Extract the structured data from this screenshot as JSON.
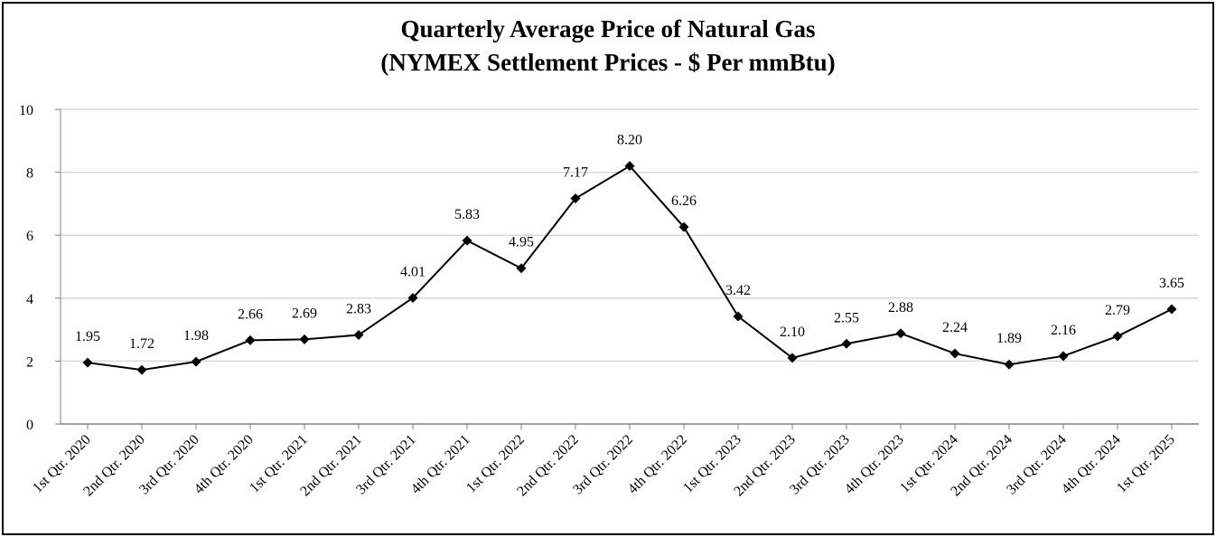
{
  "chart_data": {
    "type": "line",
    "title": "Quarterly Average Price of Natural Gas",
    "subtitle": "(NYMEX Settlement Prices - $ Per mmBtu)",
    "categories": [
      "1st Qtr. 2020",
      "2nd Qtr. 2020",
      "3rd Qtr. 2020",
      "4th Qtr. 2020",
      "1st Qtr. 2021",
      "2nd Qtr. 2021",
      "3rd Qtr. 2021",
      "4th Qtr. 2021",
      "1st Qtr. 2022",
      "2nd Qtr. 2022",
      "3rd Qtr. 2022",
      "4th Qtr. 2022",
      "1st Qtr. 2023",
      "2nd Qtr. 2023",
      "3rd Qtr. 2023",
      "4th Qtr. 2023",
      "1st Qtr. 2024",
      "2nd Qtr. 2024",
      "3rd Qtr. 2024",
      "4th Qtr. 2024",
      "1st Qtr. 2025"
    ],
    "series": [
      {
        "values": [
          1.95,
          1.72,
          1.98,
          2.66,
          2.69,
          2.83,
          4.01,
          5.83,
          4.95,
          7.17,
          8.2,
          6.26,
          3.42,
          2.1,
          2.55,
          2.88,
          2.24,
          1.89,
          2.16,
          2.79,
          3.65
        ],
        "labels": [
          "1.95",
          "1.72",
          "1.98",
          "2.66",
          "2.69",
          "2.83",
          "4.01",
          "5.83",
          "4.95",
          "7.17",
          "8.20",
          "6.26",
          "3.42",
          "2.10",
          "2.55",
          "2.88",
          "2.24",
          "1.89",
          "2.16",
          "2.79",
          "3.65"
        ]
      }
    ],
    "ylim": [
      0,
      10
    ],
    "yticks": [
      "0",
      "2",
      "4",
      "6",
      "8",
      "10"
    ],
    "xlabel": "",
    "ylabel": "",
    "grid": true,
    "marker": "diamond",
    "line_color": "#000000",
    "grid_color": "#d9d9d9"
  }
}
